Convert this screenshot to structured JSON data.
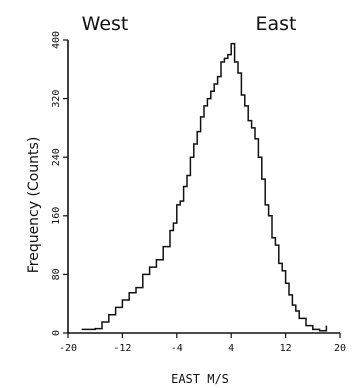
{
  "chart_data": {
    "type": "line",
    "title": "",
    "header_left": "West",
    "header_right": "East",
    "xlabel": "EAST  M/S",
    "ylabel": "Frequency (Counts)",
    "xlim": [
      -20,
      20
    ],
    "ylim": [
      0,
      400
    ],
    "x_ticks": [
      -20,
      -12,
      -4,
      4,
      12,
      20
    ],
    "x_tick_labels": [
      "-20",
      "-12",
      "-4",
      "4",
      "12",
      "20"
    ],
    "y_ticks": [
      0,
      80,
      160,
      240,
      320,
      400
    ],
    "y_tick_labels": [
      "0",
      "80",
      "160",
      "240",
      "320",
      "400"
    ],
    "grid": false,
    "series": [
      {
        "x": [
          -18,
          -16,
          -15,
          -14,
          -13,
          -12,
          -11,
          -10,
          -9,
          -8,
          -7,
          -6,
          -5,
          -4.5,
          -4,
          -3.5,
          -3,
          -2.5,
          -2,
          -1.5,
          -1,
          -0.5,
          0,
          0.5,
          1,
          1.5,
          2,
          2.5,
          3,
          3.5,
          4,
          4.5,
          5,
          5.5,
          6,
          6.5,
          7,
          7.5,
          8,
          8.5,
          9,
          9.5,
          10,
          10.5,
          11,
          11.5,
          12,
          12.5,
          13,
          13.5,
          14,
          15,
          16,
          17,
          18
        ],
        "y": [
          5,
          6,
          15,
          25,
          35,
          45,
          55,
          62,
          80,
          90,
          100,
          118,
          140,
          150,
          175,
          180,
          200,
          215,
          240,
          258,
          275,
          295,
          310,
          320,
          330,
          340,
          350,
          370,
          375,
          380,
          395,
          370,
          355,
          325,
          310,
          290,
          280,
          265,
          240,
          210,
          175,
          160,
          130,
          120,
          95,
          85,
          68,
          52,
          38,
          30,
          20,
          10,
          5,
          3,
          10
        ]
      }
    ]
  }
}
